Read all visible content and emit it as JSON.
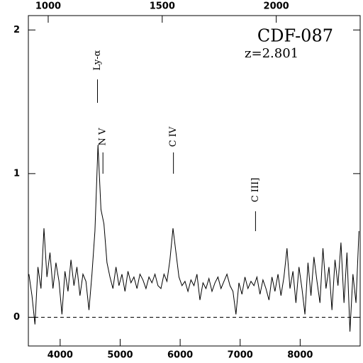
{
  "chart_data": {
    "type": "line",
    "title": "CDF-087",
    "subtitle": "z=2.801",
    "x": [
      3480,
      3530,
      3580,
      3630,
      3680,
      3730,
      3780,
      3830,
      3880,
      3930,
      3980,
      4030,
      4080,
      4130,
      4180,
      4230,
      4280,
      4330,
      4380,
      4430,
      4480,
      4530,
      4580,
      4630,
      4680,
      4730,
      4780,
      4830,
      4880,
      4930,
      4980,
      5030,
      5080,
      5130,
      5180,
      5230,
      5280,
      5330,
      5380,
      5430,
      5480,
      5530,
      5580,
      5630,
      5680,
      5730,
      5780,
      5830,
      5880,
      5930,
      5980,
      6030,
      6080,
      6130,
      6180,
      6230,
      6280,
      6330,
      6380,
      6430,
      6480,
      6530,
      6580,
      6630,
      6680,
      6730,
      6780,
      6830,
      6880,
      6930,
      6980,
      7030,
      7080,
      7130,
      7180,
      7230,
      7280,
      7330,
      7380,
      7430,
      7480,
      7530,
      7580,
      7630,
      7680,
      7730,
      7780,
      7830,
      7880,
      7930,
      7980,
      8030,
      8080,
      8130,
      8180,
      8230,
      8280,
      8330,
      8380,
      8430,
      8480,
      8530,
      8580,
      8630,
      8680,
      8730,
      8780,
      8830,
      8880,
      8930,
      8980
    ],
    "values": [
      0.3,
      0.15,
      -0.05,
      0.35,
      0.2,
      0.62,
      0.28,
      0.45,
      0.2,
      0.38,
      0.25,
      0.02,
      0.32,
      0.18,
      0.4,
      0.22,
      0.35,
      0.15,
      0.3,
      0.25,
      0.05,
      0.3,
      0.6,
      1.2,
      0.75,
      0.65,
      0.38,
      0.28,
      0.2,
      0.35,
      0.22,
      0.3,
      0.18,
      0.32,
      0.24,
      0.28,
      0.2,
      0.3,
      0.26,
      0.2,
      0.28,
      0.24,
      0.3,
      0.22,
      0.2,
      0.3,
      0.25,
      0.4,
      0.62,
      0.45,
      0.28,
      0.22,
      0.25,
      0.18,
      0.26,
      0.22,
      0.3,
      0.12,
      0.24,
      0.2,
      0.27,
      0.18,
      0.24,
      0.28,
      0.2,
      0.25,
      0.3,
      0.22,
      0.18,
      0.02,
      0.24,
      0.16,
      0.28,
      0.2,
      0.25,
      0.22,
      0.28,
      0.16,
      0.26,
      0.2,
      0.12,
      0.28,
      0.18,
      0.3,
      0.15,
      0.28,
      0.48,
      0.2,
      0.32,
      0.1,
      0.35,
      0.2,
      0.02,
      0.38,
      0.15,
      0.42,
      0.25,
      0.1,
      0.48,
      0.2,
      0.35,
      0.05,
      0.4,
      0.22,
      0.52,
      0.1,
      0.45,
      -0.1,
      0.3,
      0.1,
      0.6
    ],
    "color": "#000000",
    "xlim": [
      3470,
      9000
    ],
    "xticks": [
      4000,
      5000,
      6000,
      7000,
      8000
    ],
    "x2lim": [
      913,
      2368
    ],
    "x2ticks": [
      1000,
      1500,
      2000
    ],
    "ylim": [
      -0.2,
      2.1
    ],
    "yticks": [
      0,
      1,
      2
    ],
    "hline": 0,
    "lines": [
      {
        "label": "Ly-α",
        "x": 4622
      },
      {
        "label": "N V",
        "x": 4713
      },
      {
        "label": "C IV",
        "x": 5888
      },
      {
        "label": "C III]",
        "x": 7256
      }
    ]
  }
}
